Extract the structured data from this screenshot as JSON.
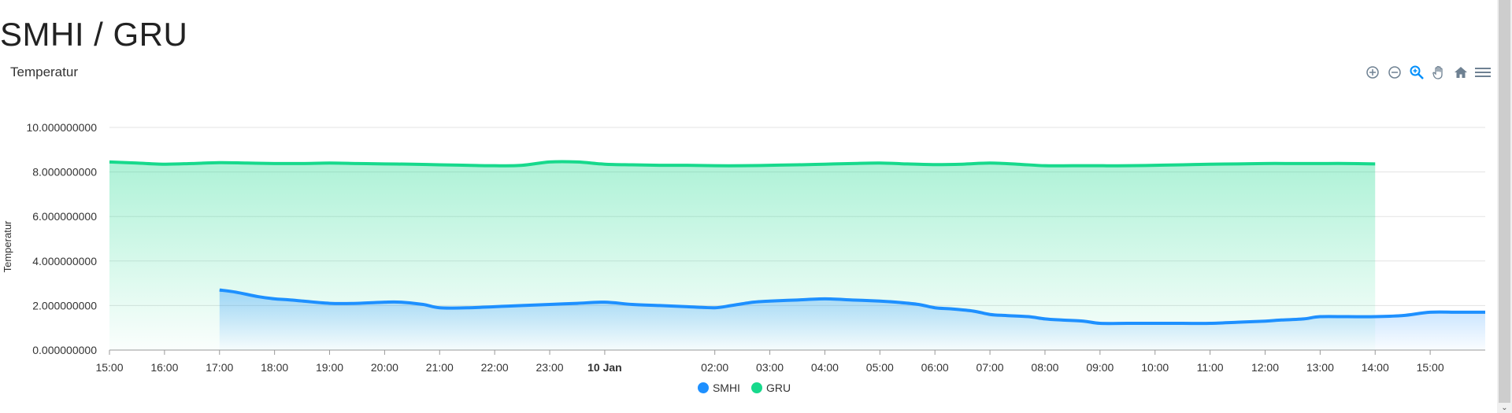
{
  "page": {
    "title": "SMHI / GRU"
  },
  "chart": {
    "title": "Temperatur"
  },
  "toolbar": {
    "icons": [
      "zoom-in-icon",
      "zoom-out-icon",
      "selection-zoom-icon",
      "pan-icon",
      "reset-home-icon",
      "menu-icon"
    ],
    "active_icon": "selection-zoom-icon"
  },
  "colors": {
    "smhi": "#1e90ff",
    "gru": "#17d98c",
    "grid": "#e3e3e3",
    "axis": "#999999"
  },
  "chart_data": {
    "type": "area",
    "ylabel": "Temperatur",
    "xlabel": "",
    "ylim": [
      0,
      10
    ],
    "yticks": [
      "0.000000000",
      "2.000000000",
      "4.000000000",
      "6.000000000",
      "8.000000000",
      "10.000000000"
    ],
    "ytick_values": [
      0,
      2,
      4,
      6,
      8,
      10
    ],
    "xticks": [
      "15:00",
      "16:00",
      "17:00",
      "18:00",
      "19:00",
      "20:00",
      "21:00",
      "22:00",
      "23:00",
      "10 Jan",
      "02:00",
      "03:00",
      "04:00",
      "05:00",
      "06:00",
      "07:00",
      "08:00",
      "09:00",
      "10:00",
      "11:00",
      "12:00",
      "13:00",
      "14:00",
      "15:00"
    ],
    "xtick_hours": [
      15,
      16,
      17,
      18,
      19,
      20,
      21,
      22,
      23,
      24,
      26,
      27,
      28,
      29,
      30,
      31,
      32,
      33,
      34,
      35,
      36,
      37,
      38,
      39
    ],
    "xtick_bold": [
      "10 Jan"
    ],
    "xrange_hours": [
      15,
      40
    ],
    "grid": true,
    "legend_position": "bottom-center",
    "series": [
      {
        "name": "SMHI",
        "x_hours": [
          17,
          17.3,
          17.7,
          18,
          18.3,
          19,
          19.5,
          20,
          20.3,
          20.7,
          21,
          21.5,
          22,
          22.5,
          23,
          23.5,
          24,
          24.5,
          25,
          25.5,
          26,
          26.3,
          26.7,
          27,
          27.5,
          28,
          28.5,
          29,
          29.3,
          29.7,
          30,
          30.3,
          30.7,
          31,
          31.3,
          31.7,
          32,
          32.3,
          32.7,
          33,
          33.5,
          34,
          34.5,
          35,
          35.5,
          36,
          36.3,
          36.7,
          37,
          37.5,
          38,
          38.5,
          39,
          39.5,
          40
        ],
        "values": [
          2.7,
          2.6,
          2.4,
          2.3,
          2.25,
          2.1,
          2.1,
          2.15,
          2.15,
          2.05,
          1.9,
          1.9,
          1.95,
          2.0,
          2.05,
          2.1,
          2.15,
          2.05,
          2.0,
          1.95,
          1.9,
          2.0,
          2.15,
          2.2,
          2.25,
          2.3,
          2.25,
          2.2,
          2.15,
          2.05,
          1.9,
          1.85,
          1.75,
          1.6,
          1.55,
          1.5,
          1.4,
          1.35,
          1.3,
          1.2,
          1.2,
          1.2,
          1.2,
          1.2,
          1.25,
          1.3,
          1.35,
          1.4,
          1.5,
          1.5,
          1.5,
          1.55,
          1.7,
          1.7,
          1.7
        ]
      },
      {
        "name": "GRU",
        "x_hours": [
          15,
          15.5,
          16,
          16.5,
          17,
          17.5,
          18,
          18.5,
          19,
          19.5,
          20,
          20.5,
          21,
          21.5,
          22,
          22.5,
          23,
          23.5,
          24,
          24.5,
          25,
          25.5,
          26,
          26.5,
          27,
          27.5,
          28,
          28.5,
          29,
          29.5,
          30,
          30.5,
          31,
          31.5,
          32,
          32.5,
          33,
          33.5,
          34,
          34.5,
          35,
          35.5,
          36,
          36.5,
          37,
          37.5,
          38
        ],
        "values": [
          8.45,
          8.4,
          8.35,
          8.38,
          8.42,
          8.4,
          8.38,
          8.38,
          8.4,
          8.38,
          8.36,
          8.35,
          8.32,
          8.3,
          8.28,
          8.3,
          8.45,
          8.45,
          8.35,
          8.32,
          8.3,
          8.3,
          8.28,
          8.28,
          8.3,
          8.32,
          8.35,
          8.38,
          8.4,
          8.36,
          8.33,
          8.35,
          8.4,
          8.35,
          8.28,
          8.28,
          8.28,
          8.28,
          8.3,
          8.32,
          8.35,
          8.36,
          8.38,
          8.38,
          8.38,
          8.38,
          8.36
        ]
      }
    ]
  }
}
